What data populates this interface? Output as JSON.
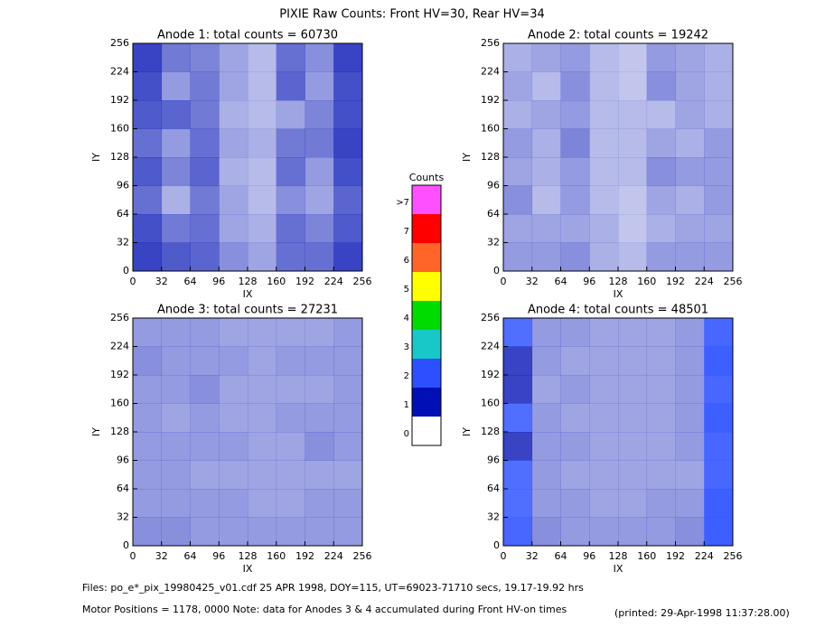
{
  "title": "PIXIE Raw Counts:  Front HV=30, Rear HV=34",
  "colorbar": {
    "title": "Counts",
    "levels": [
      0,
      1,
      2,
      3,
      4,
      5,
      6,
      7,
      {
        "value": 8,
        "label": ">7"
      }
    ],
    "colors": [
      "#ffffff",
      "#0010b4",
      "#2c50ff",
      "#18c8c8",
      "#00dc00",
      "#ffff00",
      "#ff6428",
      "#ff0000",
      "#ff50ff"
    ]
  },
  "chart_data": [
    {
      "type": "heatmap",
      "title": "Anode 1: total counts = 60730",
      "xlabel": "IX",
      "ylabel": "IY",
      "xlim": [
        0,
        256
      ],
      "ylim": [
        0,
        256
      ],
      "xticks": [
        0,
        32,
        64,
        96,
        128,
        160,
        192,
        224,
        256
      ],
      "yticks": [
        0,
        32,
        64,
        96,
        128,
        160,
        192,
        224,
        256
      ],
      "values": [
        [
          1.4,
          0.9,
          0.8,
          0.5,
          0.3,
          1.0,
          0.7,
          1.4
        ],
        [
          1.3,
          0.6,
          0.9,
          0.5,
          0.3,
          1.1,
          0.6,
          1.3
        ],
        [
          1.2,
          1.1,
          0.9,
          0.4,
          0.3,
          0.5,
          0.8,
          1.3
        ],
        [
          1.0,
          0.6,
          1.0,
          0.5,
          0.4,
          0.9,
          0.9,
          1.4
        ],
        [
          1.2,
          0.8,
          1.1,
          0.4,
          0.3,
          1.0,
          0.6,
          1.3
        ],
        [
          1.0,
          0.4,
          0.9,
          0.5,
          0.3,
          0.7,
          0.5,
          1.1
        ],
        [
          1.3,
          0.9,
          1.0,
          0.5,
          0.4,
          1.0,
          0.8,
          1.2
        ],
        [
          1.4,
          1.2,
          1.1,
          0.7,
          0.5,
          1.0,
          1.0,
          1.4
        ]
      ]
    },
    {
      "type": "heatmap",
      "title": "Anode 2: total counts = 19242",
      "xlabel": "IX",
      "ylabel": "IY",
      "xlim": [
        0,
        256
      ],
      "ylim": [
        0,
        256
      ],
      "xticks": [
        0,
        32,
        64,
        96,
        128,
        160,
        192,
        224,
        256
      ],
      "yticks": [
        0,
        32,
        64,
        96,
        128,
        160,
        192,
        224,
        256
      ],
      "values": [
        [
          0.4,
          0.5,
          0.6,
          0.3,
          0.2,
          0.6,
          0.5,
          0.4
        ],
        [
          0.5,
          0.3,
          0.7,
          0.3,
          0.2,
          0.7,
          0.5,
          0.4
        ],
        [
          0.4,
          0.5,
          0.6,
          0.3,
          0.3,
          0.3,
          0.5,
          0.4
        ],
        [
          0.6,
          0.4,
          0.8,
          0.3,
          0.3,
          0.5,
          0.4,
          0.6
        ],
        [
          0.5,
          0.4,
          0.6,
          0.3,
          0.3,
          0.7,
          0.6,
          0.6
        ],
        [
          0.7,
          0.3,
          0.6,
          0.3,
          0.2,
          0.5,
          0.4,
          0.6
        ],
        [
          0.5,
          0.5,
          0.5,
          0.4,
          0.2,
          0.4,
          0.5,
          0.5
        ],
        [
          0.6,
          0.6,
          0.7,
          0.4,
          0.3,
          0.6,
          0.6,
          0.6
        ]
      ]
    },
    {
      "type": "heatmap",
      "title": "Anode 3: total counts = 27231",
      "xlabel": "IX",
      "ylabel": "IY",
      "xlim": [
        0,
        256
      ],
      "ylim": [
        0,
        256
      ],
      "xticks": [
        0,
        32,
        64,
        96,
        128,
        160,
        192,
        224,
        256
      ],
      "yticks": [
        0,
        32,
        64,
        96,
        128,
        160,
        192,
        224,
        256
      ],
      "values": [
        [
          0.6,
          0.6,
          0.6,
          0.5,
          0.5,
          0.5,
          0.5,
          0.6
        ],
        [
          0.7,
          0.6,
          0.6,
          0.6,
          0.5,
          0.6,
          0.6,
          0.6
        ],
        [
          0.6,
          0.6,
          0.7,
          0.5,
          0.5,
          0.5,
          0.5,
          0.6
        ],
        [
          0.6,
          0.5,
          0.6,
          0.5,
          0.5,
          0.6,
          0.6,
          0.6
        ],
        [
          0.6,
          0.6,
          0.6,
          0.6,
          0.5,
          0.5,
          0.7,
          0.6
        ],
        [
          0.6,
          0.6,
          0.5,
          0.5,
          0.5,
          0.5,
          0.5,
          0.5
        ],
        [
          0.6,
          0.6,
          0.6,
          0.6,
          0.5,
          0.5,
          0.6,
          0.6
        ],
        [
          0.7,
          0.7,
          0.6,
          0.6,
          0.6,
          0.6,
          0.6,
          0.6
        ]
      ]
    },
    {
      "type": "heatmap",
      "title": "Anode 4: total counts = 48501",
      "xlabel": "IX",
      "ylabel": "IY",
      "xlim": [
        0,
        256
      ],
      "ylim": [
        0,
        256
      ],
      "xticks": [
        0,
        32,
        64,
        96,
        128,
        160,
        192,
        224,
        256
      ],
      "yticks": [
        0,
        32,
        64,
        96,
        128,
        160,
        192,
        224,
        256
      ],
      "values": [
        [
          1.5,
          0.6,
          0.6,
          0.5,
          0.5,
          0.5,
          0.6,
          1.6
        ],
        [
          1.4,
          0.6,
          0.5,
          0.5,
          0.5,
          0.5,
          0.6,
          1.7
        ],
        [
          1.4,
          0.5,
          0.6,
          0.5,
          0.5,
          0.5,
          0.6,
          1.6
        ],
        [
          1.5,
          0.6,
          0.5,
          0.5,
          0.5,
          0.5,
          0.6,
          1.7
        ],
        [
          1.4,
          0.6,
          0.6,
          0.5,
          0.5,
          0.5,
          0.6,
          1.6
        ],
        [
          1.5,
          0.6,
          0.5,
          0.5,
          0.5,
          0.5,
          0.5,
          1.6
        ],
        [
          1.5,
          0.6,
          0.6,
          0.5,
          0.5,
          0.6,
          0.6,
          1.7
        ],
        [
          1.6,
          0.7,
          0.6,
          0.6,
          0.6,
          0.6,
          0.7,
          1.7
        ]
      ]
    }
  ],
  "footer": {
    "files": "Files: po_e*_pix_19980425_v01.cdf    25 APR 1998, DOY=115, UT=69023-71710 secs, 19.17-19.92 hrs",
    "motor": "Motor Positions = 1178, 0000    Note: data for Anodes 3 & 4 accumulated during Front HV-on times",
    "printed": "(printed: 29-Apr-1998 11:37:28.00)"
  }
}
